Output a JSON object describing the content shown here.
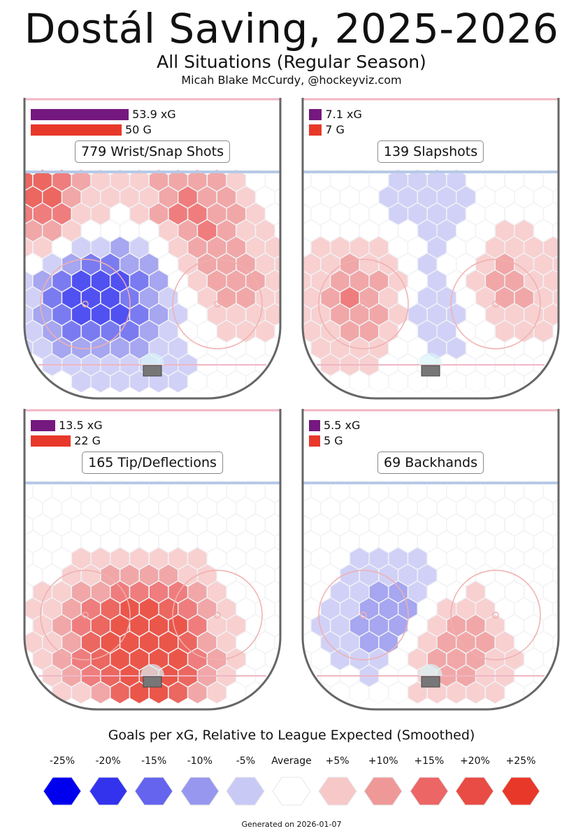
{
  "header": {
    "title": "Dostál Saving, 2025-2026",
    "subtitle": "All Situations (Regular Season)",
    "credit": "Micah Blake McCurdy, @hockeyviz.com"
  },
  "colors": {
    "xg_bar": "#74197f",
    "goal_bar": "#e8382a",
    "rink_line": "#666666",
    "blue_line": "#b7c9e6",
    "red_line": "#f0b6c4",
    "faceoff_circle": "#f0b0b0",
    "net": "#777777",
    "crease": "#d8f4f6",
    "scale": [
      "#0000ee",
      "#3333ee",
      "#6464ee",
      "#9797ef",
      "#c9c9f6",
      "#ffffff",
      "#f7c8c8",
      "#ef9898",
      "#ec6666",
      "#e84c44",
      "#e8382a"
    ]
  },
  "chart_data": [
    {
      "type": "heatmap",
      "title": "779 Wrist/Snap Shots",
      "shot_count": 779,
      "shot_type": "Wrist/Snap Shots",
      "xg": 53.9,
      "goals": 50,
      "xg_label": "53.9 xG",
      "goals_label": "50 G",
      "shot_label": "779 Wrist/Snap Shots",
      "hot_spots": [
        {
          "region": "top-left corner",
          "level": 4
        },
        {
          "region": "right point area",
          "level": 3
        },
        {
          "region": "left faceoff circle",
          "level": -4
        },
        {
          "region": "high slot",
          "level": -2
        },
        {
          "region": "right circle",
          "level": 2
        },
        {
          "region": "net front",
          "level": -1
        }
      ]
    },
    {
      "type": "heatmap",
      "title": "139 Slapshots",
      "shot_count": 139,
      "shot_type": "Slapshots",
      "xg": 7.1,
      "goals": 7,
      "xg_label": "7.1 xG",
      "goals_label": "7 G",
      "shot_label": "139 Slapshots",
      "hot_spots": [
        {
          "region": "left faceoff circle",
          "level": 3
        },
        {
          "region": "right circle",
          "level": 2
        },
        {
          "region": "slot",
          "level": -2
        },
        {
          "region": "blue line center",
          "level": -1
        }
      ]
    },
    {
      "type": "heatmap",
      "title": "165 Tip/Deflections",
      "shot_count": 165,
      "shot_type": "Tip/Deflections",
      "xg": 13.5,
      "goals": 22,
      "xg_label": "13.5 xG",
      "goals_label": "22 G",
      "shot_label": "165 Tip/Deflections",
      "hot_spots": [
        {
          "region": "net front",
          "level": 5
        },
        {
          "region": "slot",
          "level": 3
        },
        {
          "region": "left circle",
          "level": 2
        }
      ]
    },
    {
      "type": "heatmap",
      "title": "69 Backhands",
      "shot_count": 69,
      "shot_type": "Backhands",
      "xg": 5.5,
      "goals": 5,
      "xg_label": "5.5 xG",
      "goals_label": "5 G",
      "shot_label": "69 Backhands",
      "hot_spots": [
        {
          "region": "left circle inner edge",
          "level": -3
        },
        {
          "region": "right of net front",
          "level": 3
        }
      ]
    }
  ],
  "legend": {
    "title": "Goals per xG, Relative to League Expected (Smoothed)",
    "labels": [
      "-25%",
      "-20%",
      "-15%",
      "-10%",
      "-5%",
      "Average",
      "+5%",
      "+10%",
      "+15%",
      "+20%",
      "+25%"
    ]
  },
  "footer": {
    "generated": "Generated on 2026-01-07"
  }
}
